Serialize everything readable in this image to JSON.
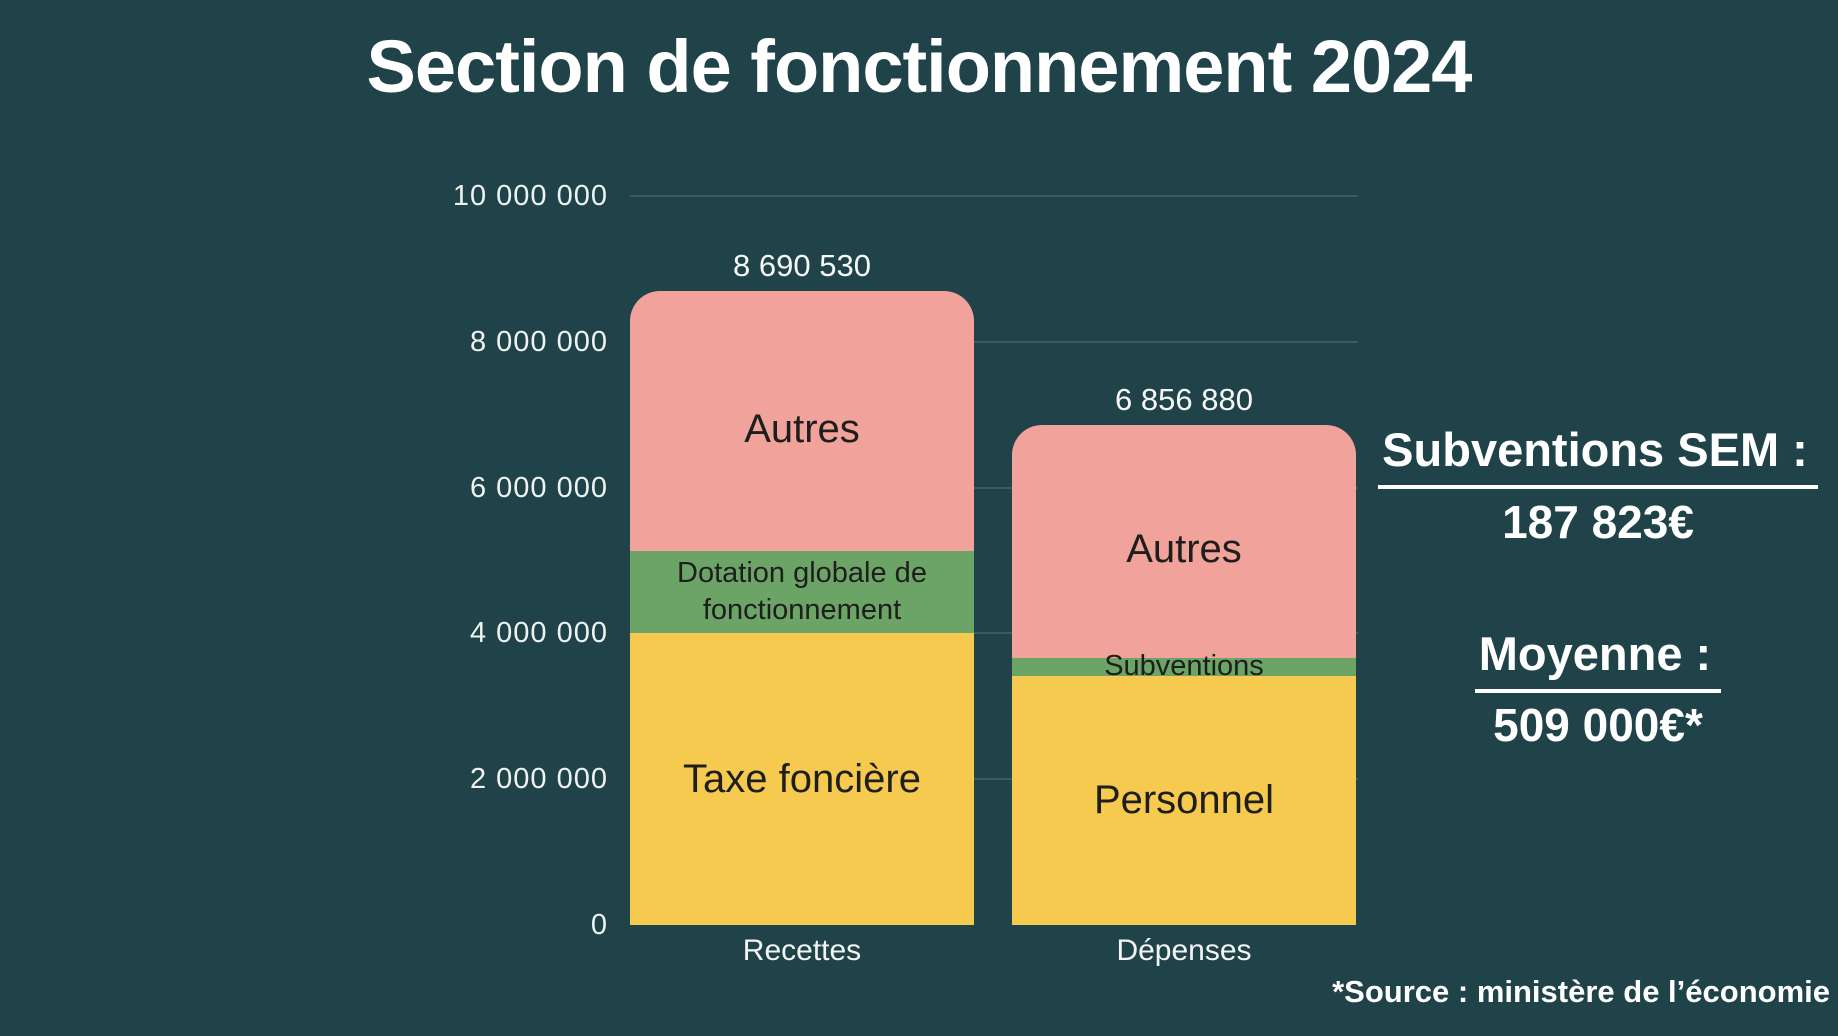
{
  "title": "Section de fonctionnement 2024",
  "source_note": "*Source : ministère de l’économie",
  "side_notes": {
    "subventions_heading": "Subventions SEM :",
    "subventions_value": "187 823€",
    "moyenne_heading": "Moyenne :",
    "moyenne_value": "509 000€*"
  },
  "colors": {
    "background": "#1f4349",
    "yellow": "#f5ca4f",
    "green": "#6ca467",
    "pink": "#f1a29b",
    "dark_text": "#1e1e1c",
    "light_text": "#f6f8f7"
  },
  "chart_data": {
    "type": "bar",
    "subtype": "stacked-columns",
    "title": "Section de fonctionnement 2024",
    "categories": [
      "Recettes",
      "Dépenses"
    ],
    "ylim": [
      0,
      10000000
    ],
    "ytick_interval": 2000000,
    "ytick_labels": [
      "0",
      "2 000 000",
      "4 000 000",
      "6 000 000",
      "8 000 000",
      "10 000 000"
    ],
    "grid": true,
    "legend": "none",
    "total_labels": [
      "8 690 530",
      "6 856 880"
    ],
    "stacks": [
      {
        "category": "Recettes",
        "total": 8690530,
        "segments": [
          {
            "label": "Taxe foncière",
            "value": 4000000,
            "color_key": "yellow",
            "value_estimated": true
          },
          {
            "label": "Dotation globale de fonctionnement",
            "value": 1130000,
            "color_key": "green",
            "value_estimated": true
          },
          {
            "label": "Autres",
            "value": 3560530,
            "color_key": "pink",
            "value_estimated": true
          }
        ]
      },
      {
        "category": "Dépenses",
        "total": 6856880,
        "segments": [
          {
            "label": "Personnel",
            "value": 3420000,
            "color_key": "yellow",
            "value_estimated": true
          },
          {
            "label": "Subventions",
            "value": 240000,
            "color_key": "green",
            "value_estimated": true
          },
          {
            "label": "Autres",
            "value": 3196880,
            "color_key": "pink",
            "value_estimated": true
          }
        ]
      }
    ]
  }
}
